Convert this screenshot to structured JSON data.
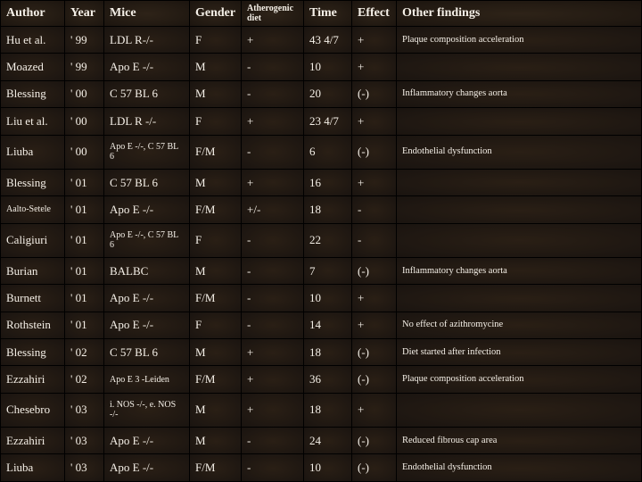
{
  "table": {
    "headers": {
      "author": "Author",
      "year": "Year",
      "mice": "Mice",
      "gender": "Gender",
      "diet": "Atherogenic diet",
      "time": "Time",
      "effect": "Effect",
      "other": "Other findings"
    },
    "rows": [
      {
        "author": "Hu et al.",
        "year": "' 99",
        "mice": "LDL R-/-",
        "gender": "F",
        "diet": "+",
        "time": "43 4/7",
        "effect": "+",
        "other": "Plaque composition acceleration",
        "smallOther": true
      },
      {
        "author": "Moazed",
        "year": "' 99",
        "mice": "Apo E -/-",
        "gender": "M",
        "diet": "-",
        "time": "10",
        "effect": "+",
        "other": ""
      },
      {
        "author": "Blessing",
        "year": "' 00",
        "mice": "C 57 BL 6",
        "gender": "M",
        "diet": "-",
        "time": "20",
        "effect": "(-)",
        "other": "Inflammatory changes aorta",
        "smallOther": true
      },
      {
        "author": "Liu et al.",
        "year": "' 00",
        "mice": "LDL R -/-",
        "gender": "F",
        "diet": "+",
        "time": "23 4/7",
        "effect": "+",
        "other": ""
      },
      {
        "author": "Liuba",
        "year": "' 00",
        "mice": "Apo E -/-, C 57 BL 6",
        "gender": "F/M",
        "diet": "-",
        "time": "6",
        "effect": "(-)",
        "other": "Endothelial dysfunction",
        "smallMice": true,
        "smallOther": true
      },
      {
        "author": "Blessing",
        "year": "' 01",
        "mice": "C 57 BL 6",
        "gender": "M",
        "diet": "+",
        "time": "16",
        "effect": "+",
        "other": ""
      },
      {
        "author": "Aalto-Setele",
        "year": "' 01",
        "mice": "Apo E -/-",
        "gender": "F/M",
        "diet": "+/-",
        "time": "18",
        "effect": "-",
        "other": "",
        "smallAuthor": true
      },
      {
        "author": "Caligiuri",
        "year": "' 01",
        "mice": "Apo E -/-, C 57 BL 6",
        "gender": "F",
        "diet": "-",
        "time": "22",
        "effect": "-",
        "other": "",
        "smallMice": true
      },
      {
        "author": "Burian",
        "year": "' 01",
        "mice": "BALBC",
        "gender": "M",
        "diet": "-",
        "time": "7",
        "effect": "(-)",
        "other": "Inflammatory changes aorta",
        "smallOther": true
      },
      {
        "author": "Burnett",
        "year": "' 01",
        "mice": "Apo E -/-",
        "gender": "F/M",
        "diet": "-",
        "time": "10",
        "effect": "+",
        "other": ""
      },
      {
        "author": "Rothstein",
        "year": "' 01",
        "mice": "Apo E -/-",
        "gender": "F",
        "diet": "-",
        "time": "14",
        "effect": "+",
        "other": "No effect of azithromycine",
        "smallOther": true
      },
      {
        "author": "Blessing",
        "year": "' 02",
        "mice": "C 57 BL 6",
        "gender": "M",
        "diet": "+",
        "time": "18",
        "effect": "(-)",
        "other": "Diet started after infection",
        "smallOther": true
      },
      {
        "author": "Ezzahiri",
        "year": "' 02",
        "mice": "Apo E 3 -Leiden",
        "gender": "F/M",
        "diet": "+",
        "time": "36",
        "effect": "(-)",
        "other": "Plaque composition acceleration",
        "smallMice": true,
        "smallOther": true
      },
      {
        "author": "Chesebro",
        "year": "' 03",
        "mice": "i. NOS -/-, e. NOS -/-",
        "gender": "M",
        "diet": "+",
        "time": "18",
        "effect": "+",
        "other": "",
        "smallMice": true
      },
      {
        "author": "Ezzahiri",
        "year": "' 03",
        "mice": "Apo E -/-",
        "gender": "M",
        "diet": "-",
        "time": "24",
        "effect": "(-)",
        "other": "Reduced fibrous cap area",
        "smallOther": true
      },
      {
        "author": "Liuba",
        "year": "' 03",
        "mice": "Apo E -/-",
        "gender": "F/M",
        "diet": "-",
        "time": "10",
        "effect": "(-)",
        "other": "Endothelial dysfunction",
        "smallOther": true
      }
    ],
    "colors": {
      "background_dark": "#1a1410",
      "background_light": "#2a1f15",
      "text": "#f5f0e8",
      "border": "#000000"
    }
  }
}
